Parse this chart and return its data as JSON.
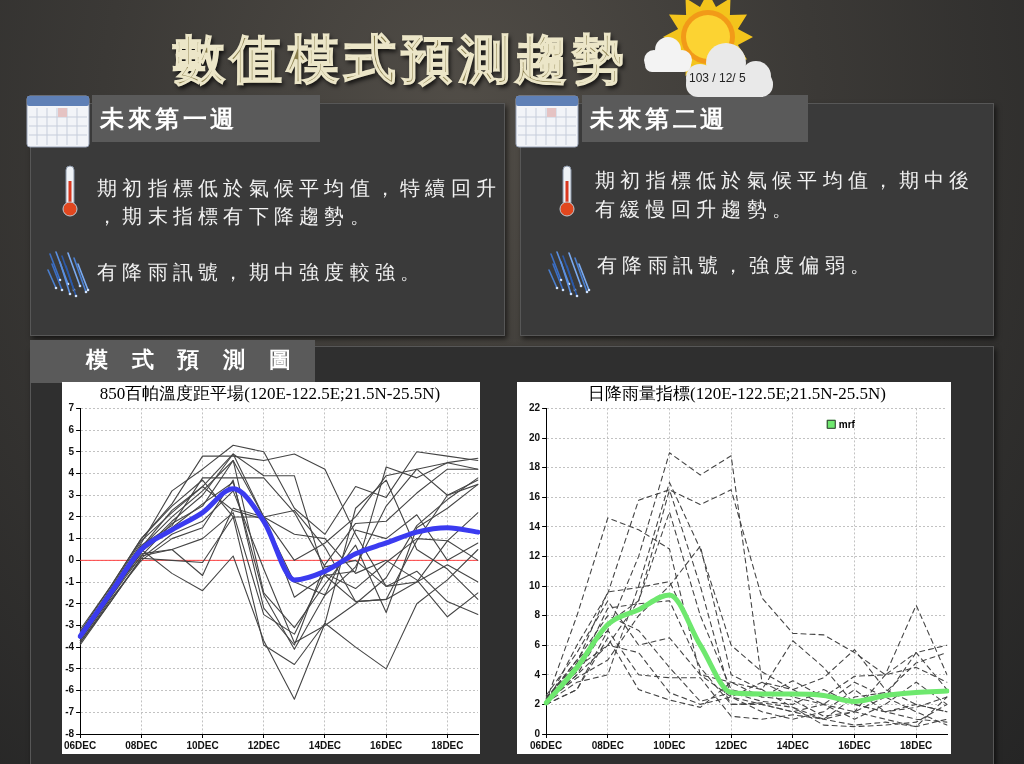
{
  "chart_data": [
    {
      "type": "other",
      "title": "數值模式預測趨勢",
      "annotations": [
        "103 / 12/ 5",
        "未來第一週",
        "期初指標低於氣候平均值，特續回升，期末指標有下降趨勢。",
        "有降雨訊號，期中強度較強。",
        "未來第二週",
        "期初指標低於氣候平均值，期中後有緩慢回升趨勢。",
        "有降雨訊號，強度偏弱。",
        "模 式 預 測 圖"
      ]
    },
    {
      "type": "line",
      "title": "850百帕溫度距平場(120E-122.5E;21.5N-25.5N)",
      "categories": [
        "06DEC",
        null,
        "08DEC",
        null,
        "10DEC",
        null,
        "12DEC",
        null,
        "14DEC",
        null,
        "16DEC",
        null,
        "18DEC",
        null
      ],
      "series": [
        {
          "color": "#3b3bf0",
          "values": [
            -3.5,
            -1.5,
            0.5,
            1.4,
            2.2,
            3.3,
            1.8,
            -0.9,
            -0.5,
            0.3,
            0.8,
            1.3,
            1.5,
            1.3
          ]
        },
        {
          "color": "#454545",
          "values": [
            -3.2,
            -1.2,
            1.0,
            2.6,
            4.8,
            4.8,
            4.6,
            4.9,
            4.2,
            1.2,
            -1.2,
            -1.0,
            0.9,
            2.2
          ]
        },
        {
          "color": "#454545",
          "values": [
            -3.4,
            -1.4,
            0.8,
            3.2,
            4.2,
            5.3,
            5.0,
            2.4,
            1.2,
            3.4,
            2.9,
            5.0,
            4.8,
            4.6
          ]
        },
        {
          "color": "#454545",
          "values": [
            -3.5,
            -1.5,
            0.6,
            2.3,
            3.4,
            4.9,
            3.9,
            3.9,
            -0.7,
            -0.5,
            4.3,
            3.8,
            4.5,
            4.2
          ]
        },
        {
          "color": "#454545",
          "values": [
            -3.6,
            -1.6,
            0.4,
            1.8,
            3.0,
            4.9,
            2.0,
            -1.7,
            -0.7,
            -1.9,
            -1.8,
            0.9,
            3.0,
            3.7
          ]
        },
        {
          "color": "#454545",
          "values": [
            -3.7,
            -1.7,
            0.2,
            1.7,
            2.5,
            4.6,
            -1.5,
            -3.1,
            -1.1,
            0.7,
            -2.4,
            1.5,
            2.4,
            3.5
          ]
        },
        {
          "color": "#454545",
          "values": [
            -3.8,
            -1.8,
            0.0,
            1.0,
            1.5,
            3.7,
            -2.2,
            -3.9,
            -0.2,
            1.7,
            1.8,
            3.1,
            4.2,
            4.2
          ]
        },
        {
          "color": "#454545",
          "values": [
            -3.3,
            -1.6,
            0.5,
            -0.6,
            -1.4,
            0.2,
            -3.7,
            -6.4,
            -2.9,
            2.4,
            3.7,
            0.5,
            -0.4,
            -1.8
          ]
        },
        {
          "color": "#454545",
          "values": [
            -3.9,
            -1.9,
            0.1,
            0.0,
            -0.1,
            2.0,
            -3.9,
            -4.8,
            -2.9,
            -4.0,
            -5.0,
            -2.0,
            -0.9,
            0.5
          ]
        },
        {
          "color": "#454545",
          "values": [
            -3.5,
            -1.5,
            0.7,
            1.6,
            3.8,
            3.8,
            3.8,
            2.2,
            -0.3,
            0.0,
            -1.2,
            -0.5,
            -1.9,
            -2.5
          ]
        },
        {
          "color": "#454545",
          "values": [
            -3.6,
            -1.4,
            0.3,
            0.5,
            -0.7,
            2.4,
            2.0,
            1.2,
            1.0,
            -0.6,
            0.0,
            -0.9,
            -2.6,
            -1.5
          ]
        },
        {
          "color": "#454545",
          "values": [
            -3.4,
            -1.3,
            0.9,
            2.2,
            3.4,
            2.3,
            1.9,
            -1.0,
            -1.6,
            1.4,
            1.0,
            2.1,
            0.0,
            0.8
          ]
        },
        {
          "color": "#454545",
          "values": [
            -3.7,
            -1.7,
            0.4,
            1.5,
            2.6,
            3.6,
            -1.6,
            -4.1,
            -1.6,
            -0.3,
            2.5,
            4.2,
            4.5,
            4.7
          ]
        },
        {
          "color": "#454545",
          "values": [
            -3.5,
            -1.5,
            0.6,
            2.0,
            3.2,
            4.6,
            2.0,
            0.0,
            0.8,
            2.0,
            3.9,
            4.2,
            3.0,
            3.5
          ]
        },
        {
          "color": "#454545",
          "values": [
            -3.6,
            -1.5,
            0.2,
            0.5,
            1.0,
            2.2,
            -2.5,
            -3.4,
            -0.6,
            -1.3,
            -0.1,
            1.0,
            0.9,
            0.0
          ]
        },
        {
          "color": "#454545",
          "values": [
            -3.3,
            -1.2,
            1.0,
            2.5,
            3.7,
            2.0,
            2.0,
            2.3,
            0.6,
            -1.9,
            -1.8,
            -1.0,
            -0.2,
            -1.0
          ]
        },
        {
          "color": "#454545",
          "values": [
            -3.8,
            -1.9,
            0.1,
            1.2,
            1.8,
            3.2,
            -0.4,
            -3.8,
            -3.0,
            -2.0,
            -0.8,
            1.6,
            2.8,
            3.8
          ]
        }
      ],
      "ylim": [
        -8,
        7
      ],
      "yticks": [
        -8,
        -7,
        -6,
        -5,
        -4,
        -3,
        -2,
        -1,
        0,
        1,
        2,
        3,
        4,
        5,
        6,
        7
      ],
      "grid": true,
      "ref_lines": [
        {
          "axis": "y",
          "value": 0,
          "color": "#ff4040"
        }
      ]
    },
    {
      "type": "line",
      "title": "日降雨量指標(120E-122.5E;21.5N-25.5N)",
      "categories": [
        "06DEC",
        null,
        "08DEC",
        null,
        "10DEC",
        null,
        "12DEC",
        null,
        "14DEC",
        null,
        "16DEC",
        null,
        "18DEC",
        null
      ],
      "series": [
        {
          "name": "mrf",
          "color": "#6ee86e",
          "values": [
            2.1,
            4.5,
            7.4,
            8.4,
            9.4,
            6.0,
            2.8,
            2.7,
            2.7,
            2.6,
            2.2,
            2.6,
            2.8,
            2.9
          ]
        },
        {
          "color": "#454545",
          "line_style": "dashed",
          "values": [
            2.2,
            8.0,
            14.6,
            13.8,
            12.5,
            4.0,
            3.5,
            3.0,
            6.3,
            4.5,
            2.0,
            1.5,
            1.0,
            0.8
          ]
        },
        {
          "color": "#454545",
          "line_style": "dashed",
          "values": [
            2.0,
            6.0,
            9.5,
            15.8,
            16.5,
            10.0,
            2.5,
            2.0,
            1.5,
            1.0,
            0.6,
            0.8,
            0.5,
            2.5
          ]
        },
        {
          "color": "#454545",
          "line_style": "dashed",
          "values": [
            2.3,
            5.0,
            7.0,
            12.0,
            19.0,
            17.5,
            18.8,
            3.5,
            2.5,
            2.0,
            1.5,
            2.5,
            5.5,
            6.0
          ]
        },
        {
          "color": "#454545",
          "line_style": "dashed",
          "values": [
            2.5,
            4.5,
            6.0,
            9.0,
            16.5,
            15.5,
            16.5,
            9.2,
            6.8,
            6.7,
            5.5,
            4.0,
            4.5,
            3.5
          ]
        },
        {
          "color": "#454545",
          "line_style": "dashed",
          "values": [
            2.1,
            3.5,
            4.0,
            10.0,
            17.0,
            12.5,
            6.0,
            4.2,
            3.0,
            3.8,
            5.7,
            3.0,
            2.0,
            1.5
          ]
        },
        {
          "color": "#454545",
          "line_style": "dashed",
          "values": [
            2.4,
            4.8,
            9.6,
            9.9,
            10.3,
            6.0,
            2.0,
            2.1,
            1.8,
            1.0,
            1.5,
            4.0,
            8.7,
            4.0
          ]
        },
        {
          "color": "#454545",
          "line_style": "dashed",
          "values": [
            2.0,
            3.0,
            6.5,
            3.0,
            2.3,
            1.8,
            3.5,
            2.5,
            3.6,
            2.5,
            3.9,
            4.0,
            5.5,
            3.0
          ]
        },
        {
          "color": "#454545",
          "line_style": "dashed",
          "values": [
            2.2,
            3.8,
            5.0,
            8.0,
            10.0,
            12.7,
            4.0,
            3.0,
            1.8,
            0.6,
            0.5,
            0.6,
            0.8,
            2.0
          ]
        },
        {
          "color": "#454545",
          "line_style": "dashed",
          "values": [
            2.6,
            5.5,
            9.0,
            6.0,
            6.5,
            4.0,
            2.5,
            1.5,
            1.0,
            1.5,
            3.0,
            1.5,
            2.0,
            1.5
          ]
        },
        {
          "color": "#454545",
          "line_style": "dashed",
          "values": [
            2.0,
            3.0,
            7.0,
            4.0,
            3.8,
            3.8,
            1.2,
            1.0,
            1.3,
            1.0,
            2.5,
            2.8,
            4.8,
            5.5
          ]
        },
        {
          "color": "#454545",
          "line_style": "dashed",
          "values": [
            2.3,
            4.2,
            8.5,
            8.8,
            9.0,
            4.5,
            2.0,
            2.0,
            1.5,
            2.0,
            1.0,
            2.0,
            3.5,
            2.0
          ]
        },
        {
          "color": "#454545",
          "line_style": "dashed",
          "values": [
            2.1,
            4.0,
            6.0,
            5.5,
            2.8,
            2.0,
            2.5,
            3.5,
            3.0,
            2.0,
            3.5,
            2.5,
            1.5,
            0.6
          ]
        },
        {
          "color": "#454545",
          "line_style": "dashed",
          "values": [
            2.4,
            5.0,
            8.0,
            7.0,
            4.5,
            2.2,
            2.8,
            2.2,
            2.0,
            3.0,
            2.0,
            1.5,
            1.8,
            2.5
          ]
        },
        {
          "color": "#454545",
          "line_style": "dashed",
          "values": [
            2.2,
            4.0,
            7.5,
            9.0,
            15.0,
            8.0,
            3.0,
            2.5,
            2.3,
            1.2,
            1.5,
            1.0,
            0.5,
            1.0
          ]
        }
      ],
      "ylim": [
        0,
        22
      ],
      "yticks": [
        0,
        2,
        4,
        6,
        8,
        10,
        12,
        14,
        16,
        18,
        20,
        22
      ],
      "grid": true,
      "legend": "top right"
    }
  ]
}
